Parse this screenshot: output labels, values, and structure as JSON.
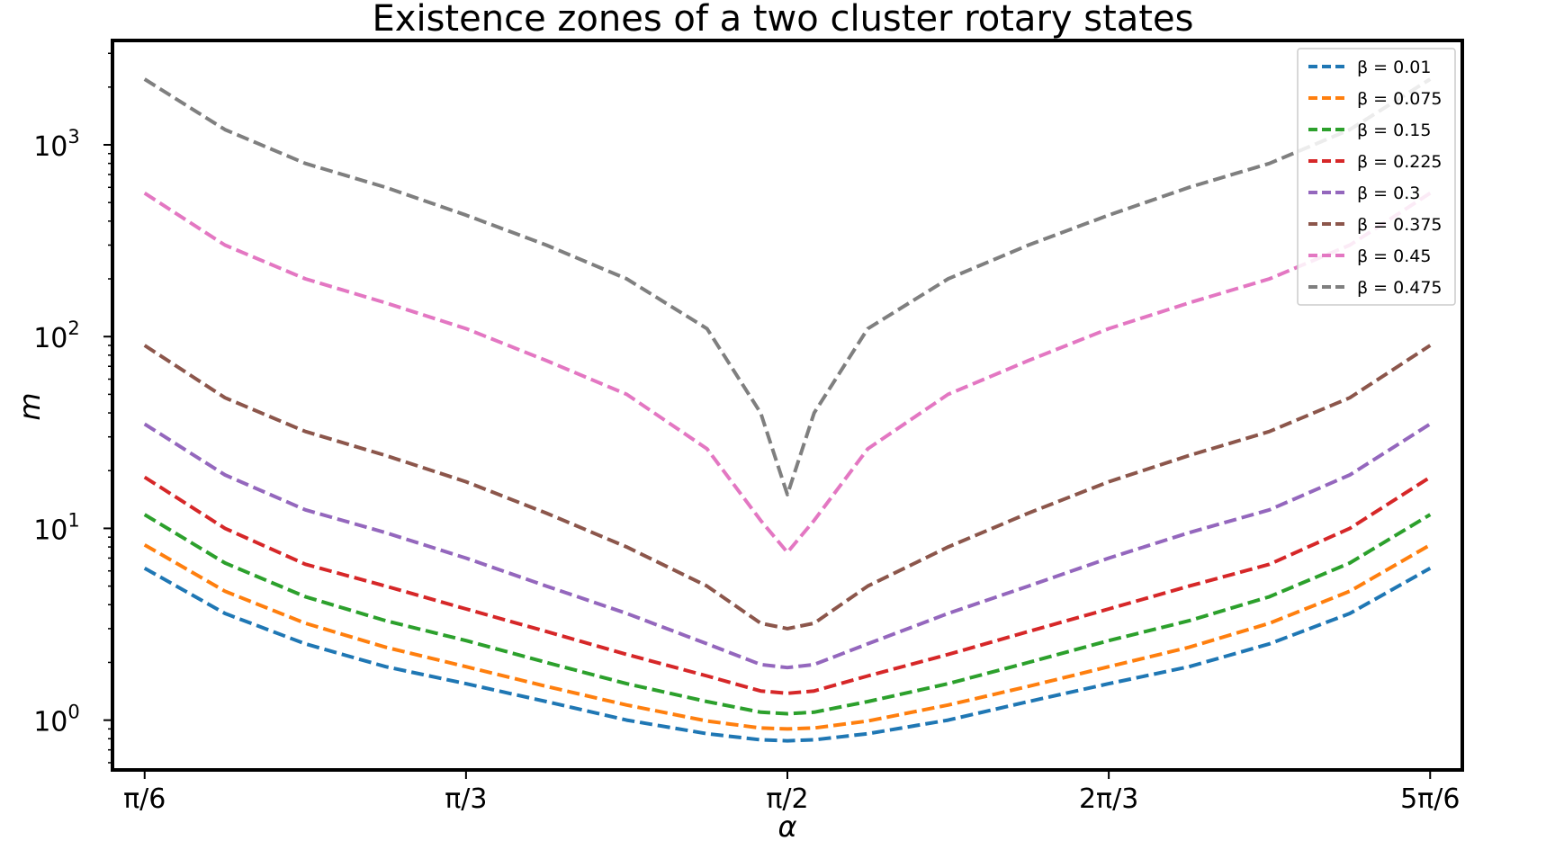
{
  "chart_data": {
    "type": "line",
    "title": "Existence zones of a two cluster rotary states",
    "xlabel": "α",
    "ylabel": "m",
    "yscale": "log",
    "xlim": [
      0.4712,
      2.6704
    ],
    "ylim": [
      0.55,
      3500
    ],
    "x_ticks": [
      {
        "value": 0.5236,
        "label": "π/6"
      },
      {
        "value": 1.0472,
        "label": "π/3"
      },
      {
        "value": 1.5708,
        "label": "π/2"
      },
      {
        "value": 2.0944,
        "label": "2π/3"
      },
      {
        "value": 2.618,
        "label": "5π/6"
      }
    ],
    "y_ticks": [
      {
        "value": 1,
        "base": "10",
        "exp": "0"
      },
      {
        "value": 10,
        "base": "10",
        "exp": "1"
      },
      {
        "value": 100,
        "base": "10",
        "exp": "2"
      },
      {
        "value": 1000,
        "base": "10",
        "exp": "3"
      }
    ],
    "line_style": "dashed",
    "grid": false,
    "legend_position": "top-right",
    "x": [
      0.5236,
      0.6545,
      0.7854,
      0.9163,
      1.0472,
      1.1781,
      1.309,
      1.4399,
      1.5272,
      1.5708,
      1.6144,
      1.7017,
      1.8326,
      1.9635,
      2.0944,
      2.2253,
      2.3562,
      2.4871,
      2.618
    ],
    "series": [
      {
        "name": "β = 0.01",
        "color": "#1f77b4",
        "values": [
          6.2,
          3.6,
          2.5,
          1.9,
          1.55,
          1.25,
          1.0,
          0.85,
          0.79,
          0.78,
          0.79,
          0.85,
          1.0,
          1.25,
          1.55,
          1.9,
          2.5,
          3.6,
          6.2
        ]
      },
      {
        "name": "β = 0.075",
        "color": "#ff7f0e",
        "values": [
          8.2,
          4.7,
          3.2,
          2.4,
          1.9,
          1.5,
          1.2,
          0.99,
          0.91,
          0.9,
          0.91,
          0.99,
          1.2,
          1.5,
          1.9,
          2.4,
          3.2,
          4.7,
          8.2
        ]
      },
      {
        "name": "β = 0.15",
        "color": "#2ca02c",
        "values": [
          11.8,
          6.6,
          4.4,
          3.3,
          2.6,
          2.0,
          1.55,
          1.25,
          1.1,
          1.08,
          1.1,
          1.25,
          1.55,
          2.0,
          2.6,
          3.3,
          4.4,
          6.6,
          11.8
        ]
      },
      {
        "name": "β = 0.225",
        "color": "#d62728",
        "values": [
          18.5,
          10.0,
          6.5,
          5.0,
          3.8,
          2.9,
          2.2,
          1.7,
          1.42,
          1.38,
          1.42,
          1.7,
          2.2,
          2.9,
          3.8,
          5.0,
          6.5,
          10.0,
          18.5
        ]
      },
      {
        "name": "β = 0.3",
        "color": "#9467bd",
        "values": [
          35,
          19,
          12.5,
          9.5,
          7.0,
          5.0,
          3.6,
          2.5,
          1.95,
          1.88,
          1.95,
          2.5,
          3.6,
          5.0,
          7.0,
          9.5,
          12.5,
          19,
          35
        ]
      },
      {
        "name": "β = 0.375",
        "color": "#8c564b",
        "values": [
          90,
          48,
          32,
          24,
          17.5,
          12,
          8,
          5,
          3.2,
          3.0,
          3.2,
          5,
          8,
          12,
          17.5,
          24,
          32,
          48,
          90
        ]
      },
      {
        "name": "β = 0.45",
        "color": "#e377c2",
        "values": [
          560,
          300,
          200,
          150,
          110,
          75,
          50,
          26,
          11,
          7.5,
          11,
          26,
          50,
          75,
          110,
          150,
          200,
          300,
          560
        ]
      },
      {
        "name": "β = 0.475",
        "color": "#7f7f7f",
        "values": [
          2200,
          1200,
          800,
          600,
          430,
          300,
          200,
          110,
          40,
          15,
          40,
          110,
          200,
          300,
          430,
          600,
          800,
          1200,
          2200
        ]
      }
    ]
  }
}
